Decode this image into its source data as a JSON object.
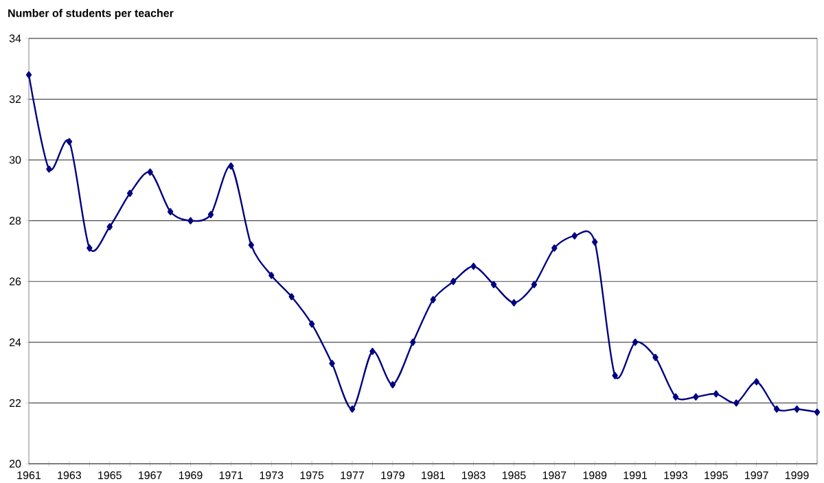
{
  "chart_data": {
    "type": "line",
    "ylabel": "Number of students per teacher",
    "x": [
      1961,
      1962,
      1963,
      1964,
      1965,
      1966,
      1967,
      1968,
      1969,
      1970,
      1971,
      1972,
      1973,
      1974,
      1975,
      1976,
      1977,
      1978,
      1979,
      1980,
      1981,
      1982,
      1983,
      1984,
      1985,
      1986,
      1987,
      1988,
      1989,
      1990,
      1991,
      1992,
      1993,
      1994,
      1995,
      1996,
      1997,
      1998,
      1999,
      2000
    ],
    "series": [
      {
        "color": "#000080",
        "values": [
          32.8,
          29.7,
          30.6,
          27.1,
          27.8,
          28.9,
          29.6,
          28.3,
          28.0,
          28.2,
          29.8,
          27.2,
          26.2,
          25.5,
          24.6,
          23.3,
          21.8,
          23.7,
          22.6,
          24.0,
          25.4,
          26.0,
          26.5,
          25.9,
          25.3,
          25.9,
          27.1,
          27.5,
          27.3,
          22.9,
          24.0,
          23.5,
          22.2,
          22.2,
          22.3,
          22.0,
          22.7,
          21.8,
          21.8,
          21.7
        ]
      }
    ],
    "xlim": [
      1961,
      2000
    ],
    "xticks": [
      1961,
      {
        "value": 1962,
        "label": null
      },
      1963,
      {
        "value": 1964,
        "label": null
      },
      1965,
      {
        "value": 1966,
        "label": null
      },
      1967,
      {
        "value": 1968,
        "label": null
      },
      1969,
      {
        "value": 1970,
        "label": null
      },
      1971,
      {
        "value": 1972,
        "label": null
      },
      1973,
      {
        "value": 1974,
        "label": null
      },
      1975,
      {
        "value": 1976,
        "label": null
      },
      1977,
      {
        "value": 1978,
        "label": null
      },
      1979,
      {
        "value": 1980,
        "label": null
      },
      1981,
      {
        "value": 1982,
        "label": null
      },
      1983,
      {
        "value": 1984,
        "label": null
      },
      1985,
      {
        "value": 1986,
        "label": null
      },
      1987,
      {
        "value": 1988,
        "label": null
      },
      1989,
      {
        "value": 1990,
        "label": null
      },
      1991,
      {
        "value": 1992,
        "label": null
      },
      1993,
      {
        "value": 1994,
        "label": null
      },
      1995,
      {
        "value": 1996,
        "label": null
      },
      1997,
      {
        "value": 1998,
        "label": null
      },
      1999,
      {
        "value": 2000,
        "label": null
      }
    ],
    "ylim": [
      20,
      34
    ],
    "yticks": [
      20,
      22,
      24,
      26,
      28,
      30,
      32,
      34
    ],
    "grid": "y",
    "marker": "diamond",
    "line_style": "solid"
  }
}
